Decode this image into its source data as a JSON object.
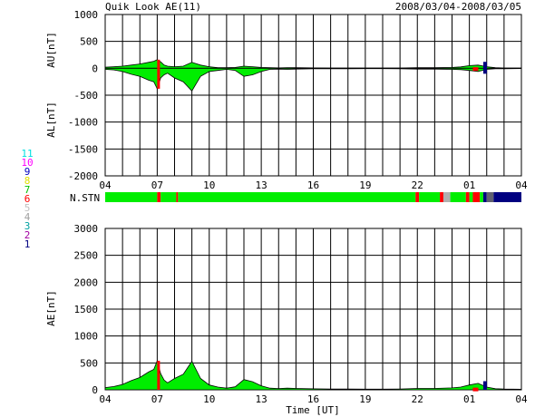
{
  "header": {
    "title": "Quik Look AE(11)",
    "date_range": "2008/03/04-2008/03/05"
  },
  "colors": {
    "grid": "#000000",
    "fill_main": "#00ee00",
    "fill_dark": "#000000",
    "fill_red": "#ff0000",
    "fill_navy": "#000080",
    "fill_grey": "#b0b0b0"
  },
  "station_legend": [
    {
      "label": "11",
      "color": "#00e0e0"
    },
    {
      "label": "10",
      "color": "#ff00ff"
    },
    {
      "label": "9",
      "color": "#0000c0"
    },
    {
      "label": "8",
      "color": "#e0e000"
    },
    {
      "label": "7",
      "color": "#00c000"
    },
    {
      "label": "6",
      "color": "#ff0000"
    },
    {
      "label": "5",
      "color": "#c0c0c0"
    },
    {
      "label": "4",
      "color": "#a0a0a0"
    },
    {
      "label": "3",
      "color": "#00a0a0"
    },
    {
      "label": "2",
      "color": "#a000a0"
    },
    {
      "label": "1",
      "color": "#000080"
    }
  ],
  "station_bar": {
    "label": "N.STN",
    "segments": [
      {
        "from": 0.0,
        "to": 3.0,
        "color": "#00ee00"
      },
      {
        "from": 3.0,
        "to": 3.2,
        "color": "#ff0000"
      },
      {
        "from": 3.2,
        "to": 4.1,
        "color": "#00ee00"
      },
      {
        "from": 4.1,
        "to": 4.2,
        "color": "#ff0000"
      },
      {
        "from": 4.2,
        "to": 17.9,
        "color": "#00ee00"
      },
      {
        "from": 17.9,
        "to": 18.1,
        "color": "#ff0000"
      },
      {
        "from": 18.1,
        "to": 19.3,
        "color": "#00ee00"
      },
      {
        "from": 19.3,
        "to": 19.5,
        "color": "#ff0000"
      },
      {
        "from": 19.5,
        "to": 19.9,
        "color": "#b0b0b0"
      },
      {
        "from": 19.9,
        "to": 20.8,
        "color": "#00ee00"
      },
      {
        "from": 20.8,
        "to": 21.0,
        "color": "#ff0000"
      },
      {
        "from": 21.0,
        "to": 21.2,
        "color": "#00ee00"
      },
      {
        "from": 21.2,
        "to": 21.6,
        "color": "#ff0000"
      },
      {
        "from": 21.6,
        "to": 21.8,
        "color": "#00ee00"
      },
      {
        "from": 21.8,
        "to": 22.0,
        "color": "#000080"
      },
      {
        "from": 22.0,
        "to": 22.4,
        "color": "#606070"
      },
      {
        "from": 22.4,
        "to": 24.0,
        "color": "#000080"
      }
    ]
  },
  "chart_data": [
    {
      "type": "area",
      "ylabel_top": "AU[nT]",
      "ylabel_bottom": "AL[nT]",
      "xlabel": "",
      "ylim": [
        -2000,
        1000
      ],
      "yticks": [
        1000,
        500,
        0,
        -500,
        -1000,
        -1500,
        -2000
      ],
      "xticks": [
        "04",
        "07",
        "10",
        "13",
        "16",
        "19",
        "22",
        "01",
        "04"
      ],
      "x_hours": [
        0,
        0.5,
        1,
        1.5,
        2,
        2.5,
        2.8,
        3.0,
        3.2,
        3.4,
        3.6,
        4.0,
        4.5,
        5.0,
        5.5,
        6.0,
        6.5,
        7.0,
        7.5,
        8.0,
        8.5,
        9.0,
        9.5,
        10.0,
        10.5,
        11.0,
        12.0,
        13.0,
        14.0,
        15.0,
        16.0,
        17.0,
        18.0,
        19.0,
        20.0,
        20.5,
        21.0,
        21.5,
        22.0,
        22.5,
        23.0,
        23.5,
        24.0
      ],
      "series": [
        {
          "values": [
            20,
            30,
            40,
            60,
            80,
            110,
            130,
            160,
            120,
            60,
            40,
            30,
            40,
            110,
            60,
            30,
            10,
            10,
            15,
            40,
            30,
            15,
            10,
            8,
            10,
            10,
            8,
            6,
            5,
            5,
            5,
            5,
            10,
            10,
            15,
            25,
            50,
            60,
            30,
            10,
            5,
            5,
            5
          ]
        },
        {
          "values": [
            -20,
            -30,
            -60,
            -110,
            -150,
            -220,
            -250,
            -380,
            -180,
            -120,
            -90,
            -180,
            -250,
            -420,
            -150,
            -60,
            -40,
            -20,
            -40,
            -150,
            -120,
            -60,
            -20,
            -15,
            -20,
            -15,
            -10,
            -8,
            -8,
            -6,
            -6,
            -10,
            -15,
            -15,
            -20,
            -25,
            -40,
            -60,
            -20,
            -10,
            -8,
            -6,
            -5
          ]
        }
      ]
    },
    {
      "type": "area",
      "ylabel": "AE[nT]",
      "xlabel": "Time [UT]",
      "ylim": [
        0,
        3000
      ],
      "yticks": [
        3000,
        2500,
        2000,
        1500,
        1000,
        500,
        0
      ],
      "xticks": [
        "04",
        "07",
        "10",
        "13",
        "16",
        "19",
        "22",
        "01",
        "04"
      ],
      "x_hours": [
        0,
        0.5,
        1,
        1.5,
        2,
        2.5,
        2.8,
        3.0,
        3.2,
        3.4,
        3.6,
        4.0,
        4.5,
        5.0,
        5.5,
        6.0,
        6.5,
        7.0,
        7.5,
        8.0,
        8.5,
        9.0,
        9.5,
        10.0,
        10.5,
        11.0,
        12.0,
        13.0,
        14.0,
        15.0,
        16.0,
        17.0,
        18.0,
        19.0,
        20.0,
        20.5,
        21.0,
        21.5,
        22.0,
        22.5,
        23.0,
        23.5,
        24.0
      ],
      "series": [
        {
          "values": [
            40,
            60,
            100,
            170,
            230,
            330,
            380,
            540,
            300,
            180,
            130,
            210,
            290,
            530,
            210,
            90,
            50,
            30,
            55,
            190,
            150,
            75,
            30,
            23,
            30,
            25,
            18,
            14,
            13,
            11,
            11,
            15,
            25,
            25,
            35,
            50,
            90,
            120,
            50,
            20,
            13,
            11,
            10
          ]
        }
      ]
    }
  ]
}
